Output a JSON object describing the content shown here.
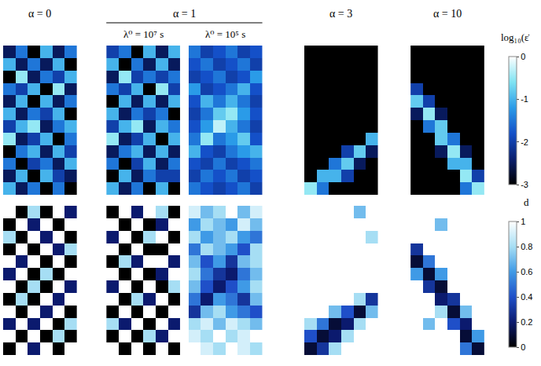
{
  "column_heads": [
    {
      "title": "α = 0"
    },
    {
      "title": "α = 1",
      "subtitles": [
        "λ⁰ = 10⁷ s",
        "λ⁰ = 10⁵ s"
      ]
    },
    {
      "title": "α = 3"
    },
    {
      "title": "α = 10"
    }
  ],
  "chart_data": [
    {
      "type": "heatmap",
      "tick_labels": false,
      "colorbar": {
        "title": "log₁₀(ε̇",
        "zlim": [
          -3,
          0
        ],
        "ticks": [
          0,
          -1,
          -2,
          -3
        ],
        "colors": [
          "#000000",
          "#0a1f6e",
          "#1450c8",
          "#2a9be8",
          "#7fe3f2",
          "#ffffff"
        ]
      },
      "panels": [
        {
          "z": [
            [
              -2.5,
              -1.5,
              -3,
              -1,
              -2.5,
              -1.5
            ],
            [
              -1,
              -2.5,
              -1.5,
              -2.5,
              -1,
              -3
            ],
            [
              -3,
              -0.5,
              -2.5,
              -1.5,
              -2,
              -1
            ],
            [
              -1.5,
              -2,
              -1,
              -3,
              -0.5,
              -2.5
            ],
            [
              -2.5,
              -1,
              -3,
              -1,
              -2.5,
              -1.5
            ],
            [
              -1,
              -2.5,
              -1.5,
              -2,
              -1,
              -3
            ],
            [
              -2,
              -1,
              -0.5,
              -2.5,
              -1.5,
              -1
            ],
            [
              -0.5,
              -2.5,
              -2,
              -1,
              -3,
              -1.5
            ],
            [
              -3,
              -1.5,
              -1,
              -2.5,
              -1,
              -2
            ],
            [
              -1.5,
              -3,
              -2,
              -1.5,
              -2.5,
              -1
            ],
            [
              -2.5,
              -1,
              -3,
              -1,
              -2,
              -2.5
            ],
            [
              -1,
              -2.5,
              -1.5,
              -3,
              -1.5,
              -3
            ]
          ]
        },
        {
          "z": [
            [
              -2,
              -1.5,
              -3,
              -1,
              -2.5,
              -1
            ],
            [
              -1,
              -3,
              -1.5,
              -2.5,
              -1,
              -2.5
            ],
            [
              -2.5,
              -0.5,
              -2,
              -1.5,
              -2,
              -1.5
            ],
            [
              -1.5,
              -2,
              -1,
              -3,
              -0.5,
              -2
            ],
            [
              -3,
              -1,
              -2.5,
              -1,
              -2.5,
              -1
            ],
            [
              -1,
              -2.5,
              -1.5,
              -2,
              -1.5,
              -3
            ],
            [
              -2,
              -1,
              -0.5,
              -2.5,
              -1,
              -1.5
            ],
            [
              -0.5,
              -2.5,
              -2,
              -1,
              -3,
              -1
            ],
            [
              -2.5,
              -1.5,
              -1,
              -2.5,
              -1,
              -2.5
            ],
            [
              -1.5,
              -3,
              -2,
              -1,
              -2.5,
              -1.5
            ],
            [
              -3,
              -1,
              -2.5,
              -1.5,
              -2,
              -2
            ],
            [
              -1,
              -2.5,
              -1.5,
              -3,
              -1,
              -3
            ]
          ]
        },
        {
          "z": [
            [
              -1.5,
              -2,
              -1.8,
              -1.5,
              -2,
              -1.8
            ],
            [
              -1.8,
              -1.5,
              -2,
              -1.8,
              -1.5,
              -2
            ],
            [
              -2,
              -1.8,
              -1.5,
              -2,
              -1.8,
              -1.2
            ],
            [
              -1.2,
              -2,
              -1.8,
              -1.5,
              -1,
              -1.8
            ],
            [
              -1.8,
              -1,
              -1.5,
              -1,
              -1.5,
              -2
            ],
            [
              -2,
              -1.5,
              -0.8,
              -0.5,
              -1.2,
              -1.8
            ],
            [
              -1.8,
              -1.2,
              -0.3,
              -1,
              -1.5,
              -2
            ],
            [
              -1.5,
              -0.5,
              -1.5,
              -1.2,
              -0.8,
              -1.8
            ],
            [
              -1,
              -1.8,
              -2,
              -1.5,
              -1.2,
              -1
            ],
            [
              -1.8,
              -2,
              -1.5,
              -2,
              -1.8,
              -1.5
            ],
            [
              -2,
              -1.5,
              -1.8,
              -1.5,
              -2,
              -1.8
            ],
            [
              -1.5,
              -1.8,
              -2,
              -1.8,
              -1.5,
              -2
            ]
          ]
        },
        {
          "z": [
            [
              -3,
              -3,
              -3,
              -3,
              -3,
              -3
            ],
            [
              -3,
              -3,
              -3,
              -3,
              -3,
              -3
            ],
            [
              -3,
              -3,
              -3,
              -3,
              -3,
              -3
            ],
            [
              -3,
              -3,
              -3,
              -3,
              -3,
              -3
            ],
            [
              -3,
              -3,
              -3,
              -3,
              -3,
              -3
            ],
            [
              -3,
              -3,
              -3,
              -3,
              -3,
              -3
            ],
            [
              -3,
              -3,
              -3,
              -3,
              -3,
              -3
            ],
            [
              -3,
              -3,
              -3,
              -3,
              -3,
              -1
            ],
            [
              -3,
              -3,
              -3,
              -2,
              -0.8,
              -2.5
            ],
            [
              -3,
              -3,
              -1.5,
              -0.8,
              -2.5,
              -3
            ],
            [
              -3,
              -1,
              -1,
              -2,
              -3,
              -3
            ],
            [
              -0.5,
              -1.5,
              -3,
              -3,
              -3,
              -3
            ]
          ]
        },
        {
          "z": [
            [
              -3,
              -3,
              -3,
              -3,
              -3,
              -3
            ],
            [
              -3,
              -3,
              -3,
              -3,
              -3,
              -3
            ],
            [
              -3,
              -3,
              -3,
              -3,
              -3,
              -3
            ],
            [
              -2,
              -3,
              -3,
              -3,
              -3,
              -3
            ],
            [
              -0.8,
              -2,
              -3,
              -3,
              -3,
              -3
            ],
            [
              -2.5,
              -0.5,
              -2.5,
              -3,
              -3,
              -3
            ],
            [
              -3,
              -1.5,
              -0.8,
              -3,
              -3,
              -3
            ],
            [
              -3,
              -3,
              -0.8,
              -1.5,
              -3,
              -3
            ],
            [
              -3,
              -3,
              -2.5,
              -0.5,
              -2.5,
              -3
            ],
            [
              -3,
              -3,
              -3,
              -1,
              -1,
              -3
            ],
            [
              -3,
              -3,
              -3,
              -3,
              -0.5,
              -2
            ],
            [
              -3,
              -3,
              -3,
              -3,
              -1.5,
              -0.5
            ]
          ]
        }
      ]
    },
    {
      "type": "heatmap",
      "tick_labels": false,
      "colorbar": {
        "title": "d",
        "zlim": [
          0,
          1
        ],
        "ticks": [
          0,
          0.2,
          0.4,
          0.6,
          0.8,
          1
        ],
        "colors": [
          "#000000",
          "#0b1a6e",
          "#1f4fc8",
          "#3f9ae6",
          "#a6def4",
          "#ffffff"
        ]
      },
      "panels": [
        {
          "z": [
            [
              1,
              0,
              0.8,
              0,
              1,
              0.2
            ],
            [
              0,
              1,
              0.2,
              1,
              0,
              1
            ],
            [
              0.8,
              0,
              1,
              0.2,
              1,
              0
            ],
            [
              0,
              1,
              0,
              1,
              0.2,
              0.8
            ],
            [
              1,
              0.2,
              1,
              0,
              1,
              0
            ],
            [
              0.2,
              1,
              0,
              0.8,
              0,
              1
            ],
            [
              1,
              0,
              0.8,
              0,
              1,
              0.2
            ],
            [
              0,
              0.8,
              0,
              1,
              0.2,
              1
            ],
            [
              1,
              0,
              1,
              0.2,
              1,
              0
            ],
            [
              0.2,
              1,
              0.2,
              1,
              0,
              0.8
            ],
            [
              1,
              0,
              1,
              0,
              0.8,
              0
            ],
            [
              0,
              1,
              0.2,
              1,
              0,
              1
            ]
          ]
        },
        {
          "z": [
            [
              0,
              1,
              0.2,
              1,
              0.8,
              0
            ],
            [
              1,
              0,
              1,
              0,
              0.2,
              1
            ],
            [
              0.2,
              1,
              0,
              0.8,
              1,
              0
            ],
            [
              1,
              0,
              1,
              0,
              0,
              1
            ],
            [
              0,
              0.8,
              0.2,
              1,
              1,
              0.2
            ],
            [
              1,
              0,
              1,
              0,
              0.2,
              1
            ],
            [
              0.2,
              1,
              0,
              1,
              0,
              0.8
            ],
            [
              1,
              0,
              0.8,
              0.2,
              1,
              0
            ],
            [
              0,
              1,
              0,
              1,
              0,
              1
            ],
            [
              0.8,
              0.2,
              1,
              0,
              1,
              0.2
            ],
            [
              0,
              1,
              0,
              0.8,
              0.2,
              1
            ],
            [
              1,
              0,
              1,
              0,
              1,
              0
            ]
          ]
        },
        {
          "z": [
            [
              0.9,
              0.7,
              0.8,
              1,
              0.7,
              0.9
            ],
            [
              0.6,
              0.8,
              0.7,
              0.6,
              0.9,
              0.7
            ],
            [
              0.8,
              0.6,
              0.7,
              0.8,
              0.6,
              0.5
            ],
            [
              0.5,
              0.8,
              0.7,
              0.6,
              0.4,
              0.8
            ],
            [
              0.7,
              0.4,
              0.6,
              0.3,
              0.7,
              0.8
            ],
            [
              0.8,
              0.5,
              0.3,
              0.2,
              0.5,
              0.7
            ],
            [
              0.7,
              0.4,
              0.2,
              0.4,
              0.6,
              0.8
            ],
            [
              0.5,
              0.2,
              0.6,
              0.5,
              0.3,
              0.7
            ],
            [
              0.3,
              0.7,
              0.8,
              0.6,
              0.5,
              0.4
            ],
            [
              0.8,
              0.9,
              0.7,
              0.9,
              0.8,
              0.7
            ],
            [
              0.9,
              0.8,
              1,
              0.8,
              0.9,
              1
            ],
            [
              1,
              0.9,
              0.8,
              1,
              0.9,
              0.8
            ]
          ]
        },
        {
          "z": [
            [
              1,
              1,
              1,
              1,
              0.7,
              1
            ],
            [
              1,
              1,
              1,
              1,
              1,
              1
            ],
            [
              1,
              1,
              1,
              1,
              1,
              0.8
            ],
            [
              1,
              1,
              1,
              1,
              1,
              1
            ],
            [
              1,
              1,
              1,
              1,
              1,
              1
            ],
            [
              1,
              1,
              1,
              1,
              1,
              1
            ],
            [
              1,
              1,
              1,
              1,
              1,
              1
            ],
            [
              1,
              1,
              1,
              1,
              0.8,
              0.3
            ],
            [
              1,
              1,
              0.7,
              0.4,
              0.1,
              0.7
            ],
            [
              0.8,
              0.5,
              0.1,
              0.2,
              0.8,
              1
            ],
            [
              0.4,
              0.1,
              0.2,
              0.8,
              1,
              1
            ],
            [
              0.1,
              0.3,
              0.8,
              1,
              1,
              1
            ]
          ]
        },
        {
          "z": [
            [
              1,
              1,
              1,
              1,
              1,
              1
            ],
            [
              1,
              1,
              0.7,
              1,
              1,
              1
            ],
            [
              1,
              1,
              1,
              1,
              1,
              1
            ],
            [
              0.3,
              1,
              1,
              1,
              1,
              1
            ],
            [
              0.1,
              0.5,
              1,
              1,
              1,
              1
            ],
            [
              0.6,
              0.1,
              0.6,
              1,
              1,
              1
            ],
            [
              1,
              0.3,
              0.1,
              1,
              1,
              1
            ],
            [
              1,
              1,
              0.2,
              0.3,
              1,
              1
            ],
            [
              1,
              1,
              0.8,
              0.1,
              0.7,
              1
            ],
            [
              1,
              0.7,
              1,
              0.4,
              0.2,
              1
            ],
            [
              1,
              1,
              1,
              1,
              0.1,
              0.6
            ],
            [
              1,
              1,
              1,
              1,
              0.5,
              0.1
            ]
          ]
        }
      ]
    }
  ]
}
